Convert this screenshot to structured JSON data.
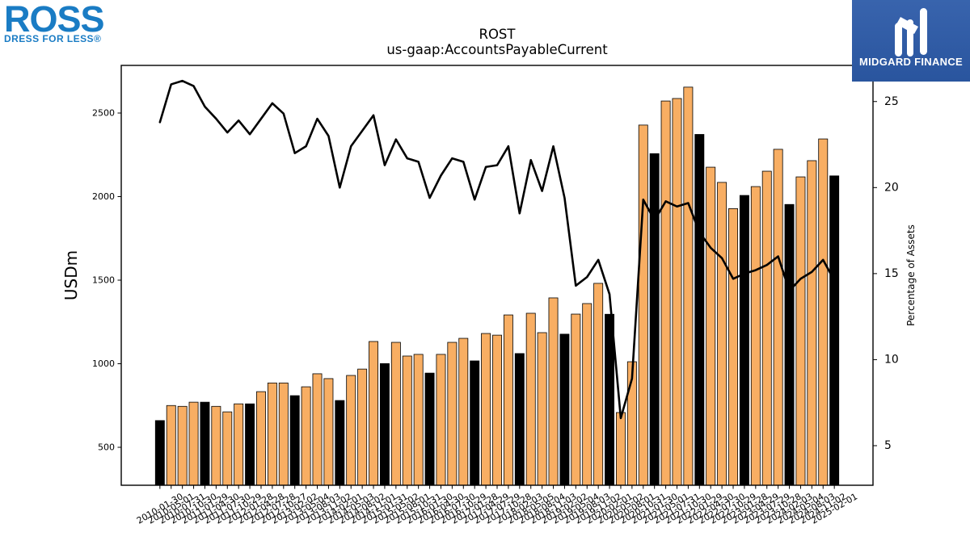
{
  "logos": {
    "ross": {
      "wordmark": "ROSS",
      "tagline": "DRESS FOR LESS®",
      "color": "#1a7cc4"
    },
    "midgard": {
      "name": "MIDGARD FINANCE",
      "background": "#2c5aa8",
      "icon": "midgard-logo-icon"
    }
  },
  "chart_data": {
    "type": "bar",
    "title": "ROST",
    "subtitle": "us-gaap:AccountsPayableCurrent",
    "ylabel": "USDm",
    "y2label": "Percentage of Assets",
    "categories": [
      "2010-01-30",
      "2010-05-01",
      "2010-07-31",
      "2010-10-30",
      "2011-01-29",
      "2011-04-30",
      "2011-07-30",
      "2011-10-29",
      "2012-01-28",
      "2012-04-28",
      "2012-07-28",
      "2012-10-27",
      "2013-02-02",
      "2013-05-04",
      "2013-08-03",
      "2013-11-02",
      "2014-02-01",
      "2014-05-03",
      "2014-08-02",
      "2014-11-01",
      "2015-01-31",
      "2015-05-02",
      "2015-08-01",
      "2015-10-31",
      "2016-01-30",
      "2016-04-30",
      "2016-07-30",
      "2016-10-29",
      "2017-01-28",
      "2017-04-29",
      "2017-07-29",
      "2017-10-28",
      "2018-02-03",
      "2018-05-05",
      "2018-08-04",
      "2018-11-03",
      "2019-02-02",
      "2019-05-04",
      "2019-08-03",
      "2019-11-02",
      "2020-02-01",
      "2020-05-02",
      "2020-08-01",
      "2020-10-31",
      "2021-01-30",
      "2021-05-01",
      "2021-07-31",
      "2021-10-30",
      "2022-01-29",
      "2022-04-30",
      "2022-07-30",
      "2022-10-29",
      "2023-01-28",
      "2023-04-29",
      "2023-07-29",
      "2023-10-28",
      "2024-02-03",
      "2024-05-04",
      "2024-08-03",
      "2024-11-02",
      "2025-02-01"
    ],
    "series": [
      {
        "type": "bar",
        "values": [
          660,
          750,
          745,
          770,
          770,
          745,
          712,
          760,
          760,
          833,
          885,
          885,
          809,
          862,
          940,
          911,
          780,
          930,
          968,
          1133,
          1001,
          1128,
          1046,
          1056,
          944,
          1056,
          1128,
          1152,
          1017,
          1181,
          1171,
          1292,
          1061,
          1302,
          1186,
          1394,
          1177,
          1297,
          1360,
          1481,
          1296,
          708,
          1012,
          2428,
          2257,
          2572,
          2587,
          2655,
          2372,
          2176,
          2085,
          1928,
          2007,
          2060,
          2152,
          2283,
          1953,
          2118,
          2215,
          2345,
          2124
        ],
        "color": "#f8ae63",
        "highlight_color": "#000000",
        "edge_color": "#000000",
        "highlight_indices": [
          0,
          4,
          8,
          12,
          16,
          20,
          24,
          28,
          32,
          36,
          40,
          44,
          48,
          52,
          56,
          60
        ]
      },
      {
        "type": "line",
        "secondary_axis": true,
        "values": [
          23.8,
          26.0,
          26.2,
          25.9,
          24.7,
          24.0,
          23.2,
          23.9,
          23.1,
          24.0,
          24.9,
          24.3,
          22.0,
          22.4,
          24.0,
          23.0,
          20.0,
          22.4,
          23.3,
          24.2,
          21.3,
          22.8,
          21.7,
          21.5,
          19.4,
          20.7,
          21.7,
          21.5,
          19.3,
          21.2,
          21.3,
          22.4,
          18.5,
          21.6,
          19.8,
          22.4,
          19.4,
          14.3,
          14.8,
          15.8,
          13.8,
          6.6,
          8.9,
          19.3,
          18.1,
          19.2,
          18.9,
          19.1,
          17.4,
          16.5,
          15.9,
          14.7,
          15.0,
          15.2,
          15.5,
          16.0,
          14.0,
          14.7,
          15.1,
          15.8,
          14.6
        ],
        "color": "#000000"
      }
    ],
    "ylim": [
      273,
      2785
    ],
    "y2lim": [
      2.7,
      27.1
    ],
    "yticks": [
      500,
      1000,
      1500,
      2000,
      2500
    ],
    "y2ticks": [
      5,
      10,
      15,
      20,
      25
    ],
    "grid": false,
    "legend": false
  }
}
